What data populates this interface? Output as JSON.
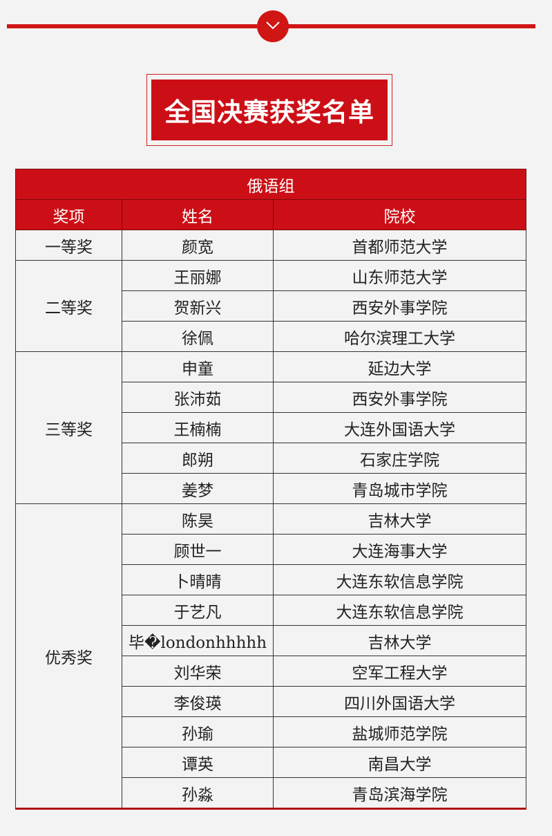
{
  "title": "全国决赛获奖名单",
  "group": "俄语组",
  "headers": {
    "award": "奖项",
    "name": "姓名",
    "school": "院校"
  },
  "colors": {
    "accent": "#cc0f16"
  },
  "icons": {
    "divider": "chevron-down-icon"
  },
  "awards": [
    {
      "label": "一等奖",
      "rows": [
        {
          "name": "颜宽",
          "school": "首都师范大学"
        }
      ]
    },
    {
      "label": "二等奖",
      "rows": [
        {
          "name": "王丽娜",
          "school": "山东师范大学"
        },
        {
          "name": "贺新兴",
          "school": "西安外事学院"
        },
        {
          "name": "徐佩",
          "school": "哈尔滨理工大学"
        }
      ]
    },
    {
      "label": "三等奖",
      "rows": [
        {
          "name": "申童",
          "school": "延边大学"
        },
        {
          "name": "张沛茹",
          "school": "西安外事学院"
        },
        {
          "name": "王楠楠",
          "school": "大连外国语大学"
        },
        {
          "name": "郎朔",
          "school": "石家庄学院"
        },
        {
          "name": "姜梦",
          "school": "青岛城市学院"
        }
      ]
    },
    {
      "label": "优秀奖",
      "rows": [
        {
          "name": "陈昊",
          "school": "吉林大学"
        },
        {
          "name": "顾世一",
          "school": "大连海事大学"
        },
        {
          "name": "卜晴晴",
          "school": "大连东软信息学院"
        },
        {
          "name": "于艺凡",
          "school": "大连东软信息学院"
        },
        {
          "name": "毕�londonhhhhh",
          "school": "吉林大学"
        },
        {
          "name": "刘华荣",
          "school": "空军工程大学"
        },
        {
          "name": "李俊瑛",
          "school": "四川外国语大学"
        },
        {
          "name": "孙瑜",
          "school": "盐城师范学院"
        },
        {
          "name": "谭英",
          "school": "南昌大学"
        },
        {
          "name": "孙淼",
          "school": "青岛滨海学院"
        }
      ]
    }
  ]
}
